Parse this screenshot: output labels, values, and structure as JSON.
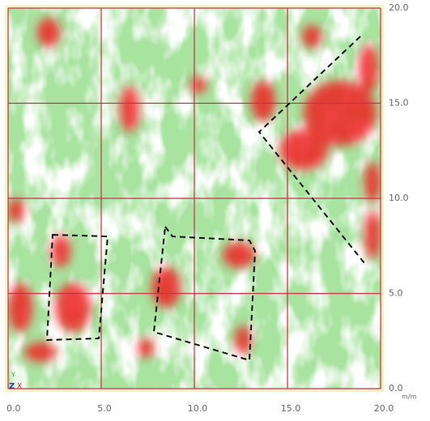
{
  "chart_data": {
    "type": "heatmap",
    "xlim": [
      0,
      20
    ],
    "ylim": [
      0,
      20
    ],
    "xticks": [
      {
        "value": 0,
        "label": "0.0"
      },
      {
        "value": 5,
        "label": "5.0"
      },
      {
        "value": 10,
        "label": "10.0"
      },
      {
        "value": 15,
        "label": "15.0"
      },
      {
        "value": 20,
        "label": "20.0"
      }
    ],
    "yticks": [
      {
        "value": 0,
        "label": "0.0"
      },
      {
        "value": 5,
        "label": "5.0"
      },
      {
        "value": 10,
        "label": "10.0"
      },
      {
        "value": 15,
        "label": "15.0"
      },
      {
        "value": 20,
        "label": "20.0"
      }
    ],
    "x_unit": "m/m",
    "axis_indicator_labels": [
      "Y",
      "Z",
      "X"
    ],
    "grid": true,
    "grid_color": "#c8304a"
  }
}
